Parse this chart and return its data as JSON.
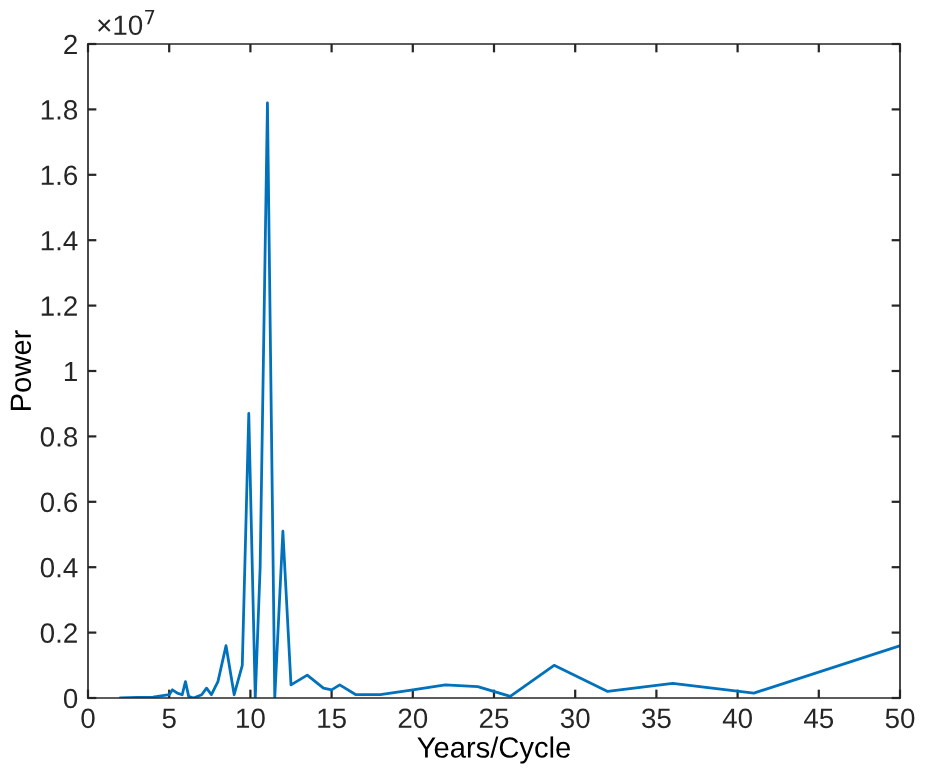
{
  "chart_data": {
    "type": "line",
    "xlabel": "Years/Cycle",
    "ylabel": "Power",
    "annotations": [
      "×10$^{7}$"
    ],
    "xlim": [
      0,
      50
    ],
    "xticks": [
      0,
      5,
      10,
      15,
      20,
      25,
      30,
      35,
      40,
      45,
      50
    ],
    "ylim": [
      0,
      2
    ],
    "yticks": [
      0,
      0.2,
      0.4,
      0.6,
      0.8,
      1,
      1.2,
      1.4,
      1.6,
      1.8,
      2
    ],
    "grid": false,
    "marker": "none",
    "line_style": "solid",
    "series": [
      {
        "color": "#0072bd",
        "x": [
          2,
          3,
          4,
          5,
          5.2,
          5.5,
          5.8,
          6.0,
          6.2,
          6.5,
          7,
          7.3,
          7.6,
          8,
          8.5,
          9,
          9.5,
          9.9,
          10.3,
          10.6,
          11.05,
          11.5,
          12.0,
          12.5,
          13.5,
          14.5,
          15,
          15.5,
          16.5,
          18,
          20,
          22,
          24,
          26,
          28.7,
          32,
          36,
          41,
          50
        ],
        "values": [
          0,
          0.002,
          0.003,
          0.01,
          0.025,
          0.015,
          0.01,
          0.05,
          0.005,
          0,
          0.01,
          0.03,
          0.01,
          0.05,
          0.16,
          0.01,
          0.1,
          0.87,
          0,
          0.4,
          1.82,
          0,
          0.51,
          0.04,
          0.07,
          0.03,
          0.025,
          0.04,
          0.01,
          0.01,
          0.025,
          0.04,
          0.035,
          0.005,
          0.1,
          0.02,
          0.045,
          0.015,
          0.16
        ]
      }
    ]
  }
}
